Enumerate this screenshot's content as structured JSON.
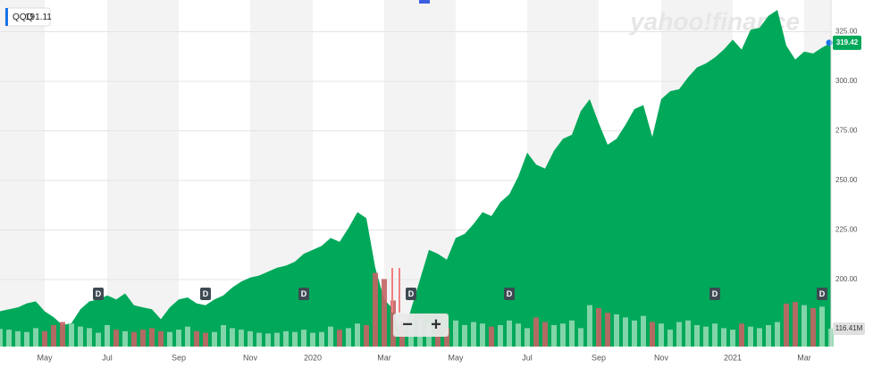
{
  "chart_data": {
    "type": "area",
    "legend": {
      "symbol": "QQQ",
      "price": 191.11
    },
    "watermark": "yahoo!finance",
    "controls": [
      "−",
      "+"
    ],
    "dividend_label": "D",
    "categories": [
      null,
      null,
      null,
      null,
      null,
      "May",
      null,
      null,
      null,
      null,
      null,
      null,
      "Jul",
      null,
      null,
      null,
      null,
      null,
      null,
      null,
      "Sep",
      null,
      null,
      null,
      null,
      null,
      null,
      null,
      "Nov",
      null,
      null,
      null,
      null,
      null,
      null,
      "2020",
      null,
      null,
      null,
      null,
      null,
      null,
      null,
      "Mar",
      null,
      null,
      null,
      null,
      null,
      null,
      null,
      "May",
      null,
      null,
      null,
      null,
      null,
      null,
      null,
      "Jul",
      null,
      null,
      null,
      null,
      null,
      null,
      null,
      "Sep",
      null,
      null,
      null,
      null,
      null,
      null,
      "Nov",
      null,
      null,
      null,
      null,
      null,
      null,
      null,
      "2021",
      null,
      null,
      null,
      null,
      null,
      null,
      null,
      "Mar",
      null,
      null,
      null
    ],
    "series": [
      {
        "name": "QQQ",
        "color": "#00a85a",
        "values": [
          184,
          185,
          186,
          188,
          189,
          184,
          181,
          177,
          178,
          185,
          189,
          190,
          192,
          190,
          193,
          187,
          186,
          185,
          180,
          186,
          190,
          191,
          188,
          187,
          190,
          192,
          196,
          199,
          201,
          202,
          204,
          206,
          207,
          209,
          213,
          215,
          217,
          221,
          219,
          226,
          234,
          231,
          206,
          190,
          185,
          170,
          185,
          200,
          215,
          213,
          210,
          221,
          223,
          228,
          234,
          232,
          239,
          243,
          252,
          264,
          258,
          256,
          265,
          271,
          273,
          285,
          291,
          279,
          268,
          271,
          278,
          286,
          288,
          272,
          291,
          295,
          296,
          302,
          307,
          309,
          312,
          316,
          321,
          316,
          326,
          327,
          333,
          336,
          318,
          311,
          315,
          314,
          317,
          319.42
        ],
        "value_labels": [
          null,
          null,
          null,
          null,
          null,
          null,
          null,
          null,
          null,
          null,
          null,
          null,
          null,
          null,
          null,
          null,
          null,
          null,
          null,
          null,
          null,
          null,
          null,
          null,
          null,
          null,
          null,
          null,
          null,
          null,
          null,
          null,
          null,
          null,
          null,
          null,
          null,
          null,
          null,
          null,
          null,
          null,
          null,
          null,
          null,
          null,
          null,
          null,
          null,
          null,
          null,
          null,
          null,
          null,
          null,
          null,
          null,
          null,
          null,
          null,
          null,
          null,
          null,
          null,
          null,
          null,
          null,
          null,
          null,
          null,
          null,
          null,
          null,
          null,
          null,
          null,
          null,
          null,
          null,
          null,
          null,
          null,
          null,
          null,
          null,
          null,
          null,
          null,
          null,
          null,
          null,
          null,
          null,
          "319.42"
        ]
      },
      {
        "name": "Volume",
        "axis": "y2",
        "color": "#8fd9b0",
        "down_color": "#c46464",
        "values": [
          115,
          110,
          100,
          95,
          120,
          100,
          140,
          160,
          150,
          130,
          120,
          90,
          140,
          110,
          100,
          95,
          110,
          120,
          100,
          95,
          110,
          130,
          100,
          90,
          95,
          140,
          120,
          110,
          100,
          90,
          85,
          90,
          100,
          95,
          110,
          90,
          95,
          130,
          110,
          120,
          150,
          140,
          480,
          440,
          300,
          160,
          200,
          180,
          150,
          140,
          120,
          170,
          140,
          160,
          150,
          130,
          140,
          170,
          150,
          120,
          190,
          160,
          140,
          150,
          170,
          120,
          270,
          250,
          220,
          210,
          190,
          170,
          200,
          160,
          150,
          110,
          160,
          170,
          140,
          130,
          150,
          120,
          110,
          150,
          130,
          120,
          140,
          160,
          280,
          290,
          270,
          250,
          260,
          116.41
        ],
        "value_labels": [
          null,
          null,
          null,
          null,
          null,
          null,
          null,
          null,
          null,
          null,
          null,
          null,
          null,
          null,
          null,
          null,
          null,
          null,
          null,
          null,
          null,
          null,
          null,
          null,
          null,
          null,
          null,
          null,
          null,
          null,
          null,
          null,
          null,
          null,
          null,
          null,
          null,
          null,
          null,
          null,
          null,
          null,
          null,
          null,
          null,
          null,
          null,
          null,
          null,
          null,
          null,
          null,
          null,
          null,
          null,
          null,
          null,
          null,
          null,
          null,
          null,
          null,
          null,
          null,
          null,
          null,
          null,
          null,
          null,
          null,
          null,
          null,
          null,
          null,
          null,
          null,
          null,
          null,
          null,
          null,
          null,
          null,
          null,
          null,
          null,
          null,
          null,
          null,
          null,
          null,
          null,
          null,
          null,
          "116.41M"
        ]
      }
    ],
    "ylim": [
      166.2,
      341
    ],
    "yticks": [
      {
        "value": 200,
        "label": "200.00"
      },
      {
        "value": 225,
        "label": "225.00"
      },
      {
        "value": 250,
        "label": "250.00"
      },
      {
        "value": 275,
        "label": "275.00"
      },
      {
        "value": 300,
        "label": "300.00"
      },
      {
        "value": 325,
        "label": "325.00"
      }
    ],
    "y2lim": [
      0,
      512
    ],
    "grid": true
  }
}
